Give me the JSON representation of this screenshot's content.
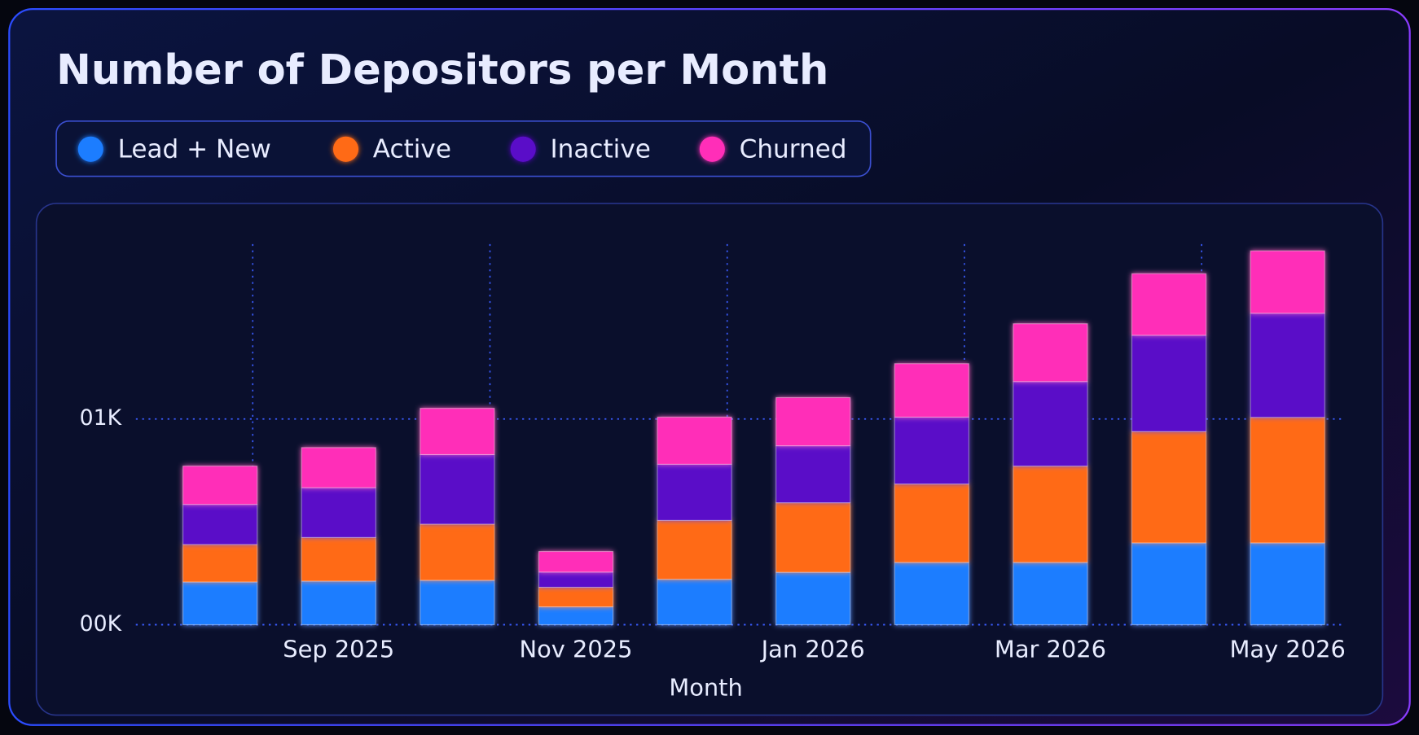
{
  "chart_data": {
    "type": "stacked_bar",
    "title": "Number of Depositors per Month",
    "x_label": "Month",
    "categories": [
      null,
      "Sep 2025",
      null,
      "Nov 2025",
      null,
      "Jan 2026",
      null,
      "Mar 2026",
      null,
      "May 2026"
    ],
    "series": [
      {
        "name": "Lead + New",
        "color": "#1f7dff",
        "values": [
          208,
          212,
          216,
          87,
          221,
          255,
          303,
          303,
          398,
          398
        ]
      },
      {
        "name": "Active",
        "color": "#ff6a14",
        "values": [
          182,
          212,
          273,
          95,
          286,
          338,
          381,
          468,
          541,
          610
        ]
      },
      {
        "name": "Inactive",
        "color": "#5a10c8",
        "values": [
          195,
          242,
          338,
          74,
          273,
          277,
          325,
          411,
          468,
          506
        ]
      },
      {
        "name": "Churned",
        "color": "#ff2fb8",
        "values": [
          186,
          195,
          225,
          100,
          229,
          234,
          260,
          281,
          299,
          303
        ]
      }
    ],
    "ylim": [
      0,
      1850
    ],
    "yticks": [
      {
        "value": 0,
        "label": "00K"
      },
      {
        "value": 1000,
        "label": "01K"
      }
    ],
    "grid": true
  }
}
